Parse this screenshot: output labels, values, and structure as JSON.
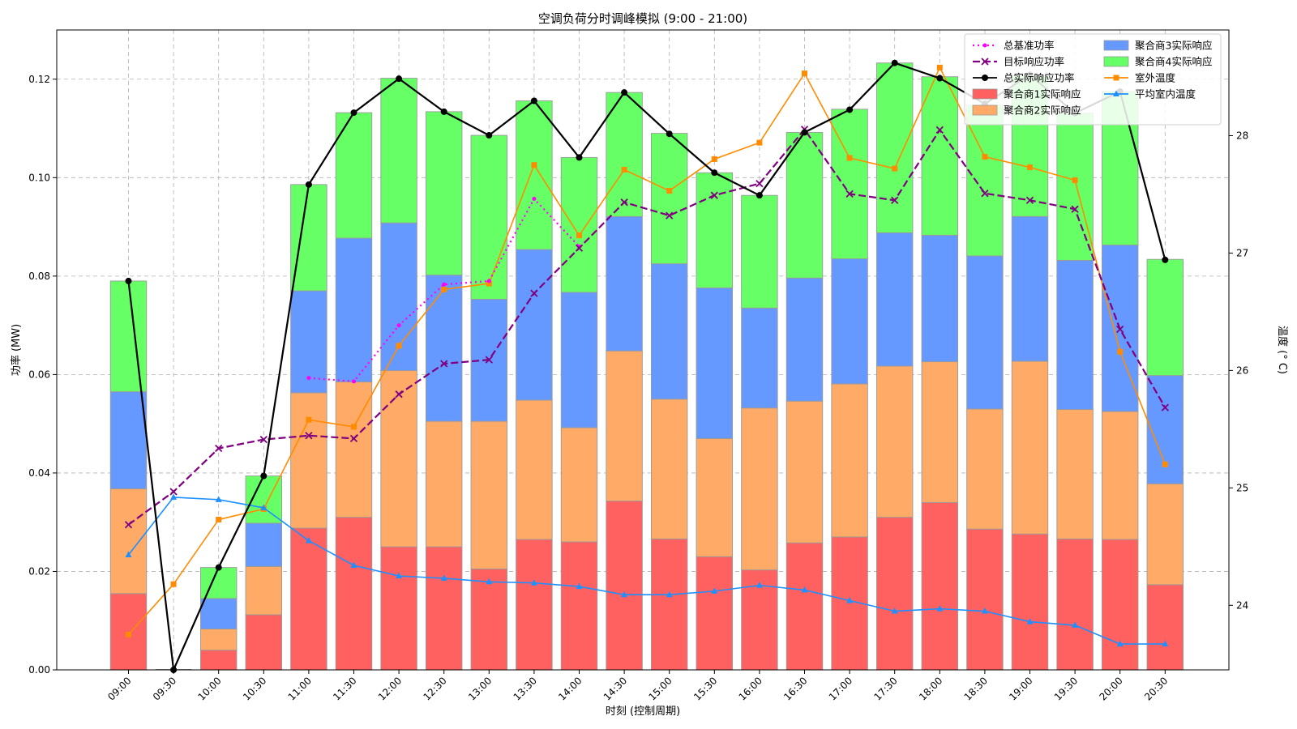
{
  "chart_data": {
    "type": "bar",
    "title": "空调负荷分时调峰模拟 (9:00 - 21:00)",
    "xlabel": "时刻 (控制周期)",
    "ylabel": "功率 (MW)",
    "y2label": "温度 (° C)",
    "ylim": [
      0,
      0.13
    ],
    "y2lim": [
      23.45,
      28.9
    ],
    "yticks": [
      "0.00",
      "0.02",
      "0.04",
      "0.06",
      "0.08",
      "0.10",
      "0.12"
    ],
    "y2ticks": [
      "24",
      "25",
      "26",
      "27",
      "28"
    ],
    "grid": true,
    "legend_position": "top-right",
    "categories": [
      "09:00",
      "09:30",
      "10:00",
      "10:30",
      "11:00",
      "11:30",
      "12:00",
      "12:30",
      "13:00",
      "13:30",
      "14:00",
      "14:30",
      "15:00",
      "15:30",
      "16:00",
      "16:30",
      "17:00",
      "17:30",
      "18:00",
      "18:30",
      "19:00",
      "19:30",
      "20:00",
      "20:30"
    ],
    "bar_series": [
      {
        "name": "聚合商1实际响应",
        "color": "#ff6060",
        "values": [
          0.0155,
          0,
          0.004,
          0.0112,
          0.0288,
          0.031,
          0.025,
          0.025,
          0.0205,
          0.0265,
          0.026,
          0.0343,
          0.0266,
          0.023,
          0.0203,
          0.0258,
          0.027,
          0.031,
          0.034,
          0.0286,
          0.0276,
          0.0266,
          0.0265,
          0.0173
        ]
      },
      {
        "name": "聚合商2实际响应",
        "color": "#ffaa66",
        "values": [
          0.0213,
          0,
          0.0043,
          0.0098,
          0.0275,
          0.0275,
          0.0358,
          0.0255,
          0.03,
          0.0283,
          0.0232,
          0.0305,
          0.0284,
          0.024,
          0.0329,
          0.0288,
          0.0311,
          0.0307,
          0.0286,
          0.0244,
          0.0351,
          0.0263,
          0.026,
          0.0205
        ]
      },
      {
        "name": "聚合商3实际响应",
        "color": "#6699ff",
        "values": [
          0.0197,
          0,
          0.0062,
          0.0088,
          0.0207,
          0.0292,
          0.03,
          0.0297,
          0.0248,
          0.0306,
          0.0275,
          0.0273,
          0.0275,
          0.0306,
          0.0203,
          0.025,
          0.0254,
          0.0271,
          0.0257,
          0.0311,
          0.0294,
          0.0303,
          0.0338,
          0.022
        ]
      },
      {
        "name": "聚合商4实际响应",
        "color": "#66ff66",
        "values": [
          0.0225,
          0,
          0.0063,
          0.0096,
          0.0216,
          0.0255,
          0.0294,
          0.0332,
          0.0333,
          0.0302,
          0.0274,
          0.0252,
          0.0265,
          0.0234,
          0.0229,
          0.0296,
          0.0304,
          0.0345,
          0.0322,
          0.0306,
          0.0286,
          0.0299,
          0.0312,
          0.0236
        ]
      }
    ],
    "line_series": [
      {
        "name": "总基准功率",
        "color": "#ff00ff",
        "style": "dotted",
        "marker": "dot",
        "axis": "left",
        "values": [
          null,
          null,
          null,
          null,
          0.0593,
          0.0586,
          0.07,
          0.0783,
          0.079,
          0.0957,
          0.086,
          null,
          null,
          null,
          null,
          null,
          null,
          null,
          null,
          null,
          null,
          null,
          null,
          null
        ]
      },
      {
        "name": "目标响应功率",
        "color": "#800080",
        "style": "dashed",
        "marker": "x",
        "axis": "left",
        "values": [
          0.0295,
          0.0362,
          0.045,
          0.0468,
          0.0476,
          0.047,
          0.056,
          0.0622,
          0.063,
          0.0765,
          0.0857,
          0.095,
          0.0923,
          0.0964,
          0.0988,
          0.1098,
          0.0967,
          0.0954,
          0.1097,
          0.0968,
          0.0954,
          0.0936,
          0.0692,
          0.0533
        ]
      },
      {
        "name": "总实际响应功率",
        "color": "#000000",
        "style": "solid",
        "marker": "circle",
        "axis": "left",
        "values": [
          0.079,
          0,
          0.0208,
          0.0394,
          0.0986,
          0.1132,
          0.1201,
          0.1134,
          0.1086,
          0.1156,
          0.1041,
          0.1173,
          0.1089,
          0.101,
          0.0964,
          0.1092,
          0.1138,
          0.1233,
          0.1202,
          0.115,
          0.1209,
          0.1131,
          0.1175,
          0.0833
        ]
      },
      {
        "name": "室外温度",
        "color": "#ff8c00",
        "style": "solid",
        "marker": "square",
        "axis": "right",
        "values": [
          23.75,
          24.18,
          24.73,
          24.82,
          25.58,
          25.52,
          26.21,
          26.69,
          26.74,
          27.75,
          27.15,
          27.71,
          27.53,
          27.8,
          27.94,
          28.53,
          27.81,
          27.72,
          28.58,
          27.82,
          27.73,
          27.62,
          26.16,
          25.2
        ]
      },
      {
        "name": "平均室内温度",
        "color": "#1e90ff",
        "style": "solid",
        "marker": "triangle",
        "axis": "right",
        "values": [
          24.43,
          24.92,
          24.9,
          24.83,
          24.55,
          24.34,
          24.25,
          24.23,
          24.2,
          24.19,
          24.16,
          24.09,
          24.09,
          24.12,
          24.17,
          24.13,
          24.04,
          23.95,
          23.97,
          23.95,
          23.86,
          23.83,
          23.67,
          23.67
        ]
      }
    ],
    "legend_order": [
      "总基准功率",
      "目标响应功率",
      "总实际响应功率",
      "聚合商1实际响应",
      "聚合商2实际响应",
      "聚合商3实际响应",
      "聚合商4实际响应",
      "室外温度",
      "平均室内温度"
    ]
  }
}
